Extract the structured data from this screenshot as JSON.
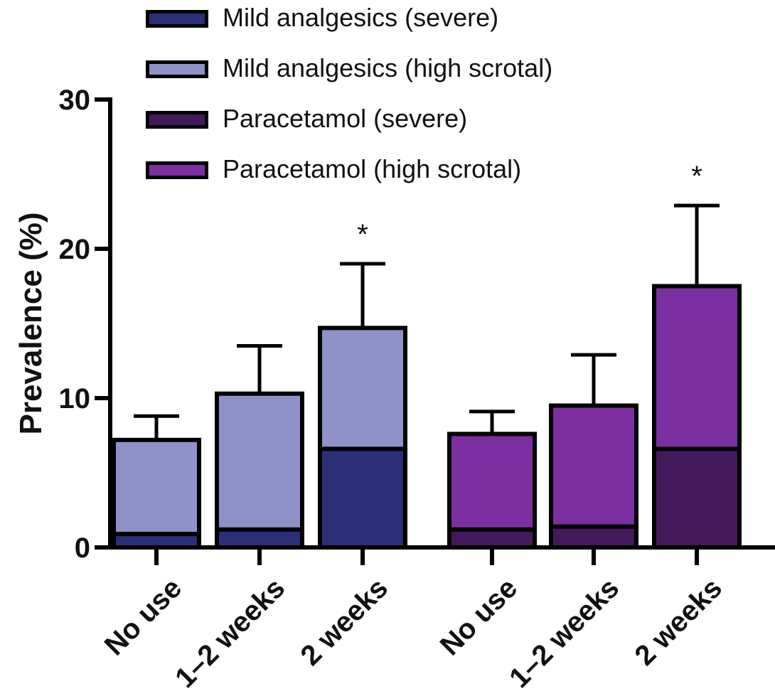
{
  "chart_data": {
    "type": "bar",
    "stacked": true,
    "ylabel": "Prevalence (%)",
    "ylim": [
      0,
      30
    ],
    "yticks": [
      0,
      10,
      20,
      30
    ],
    "categories": [
      "No use",
      "1–2 weeks",
      "2 weeks",
      "No use",
      "1–2 weeks",
      "2 weeks"
    ],
    "series": [
      {
        "name": "Mild analgesics (severe)",
        "color": "#2b2f77",
        "values": [
          0.9,
          1.2,
          6.6,
          null,
          null,
          null
        ]
      },
      {
        "name": "Mild analgesics (high scrotal)",
        "color": "#8e92c8",
        "values": [
          6.3,
          9.1,
          8.1,
          null,
          null,
          null
        ]
      },
      {
        "name": "Paracetamol (severe)",
        "color": "#43195c",
        "values": [
          null,
          null,
          null,
          1.2,
          1.4,
          6.6
        ]
      },
      {
        "name": "Paracetamol (high scrotal)",
        "color": "#7b2fa0",
        "values": [
          null,
          null,
          null,
          6.4,
          8.1,
          10.9
        ]
      }
    ],
    "error_upper": [
      8.8,
      13.5,
      19.0,
      9.1,
      12.9,
      22.9
    ],
    "annotations": [
      "",
      "",
      "*",
      "",
      "",
      "*"
    ],
    "legend_position": "top"
  }
}
